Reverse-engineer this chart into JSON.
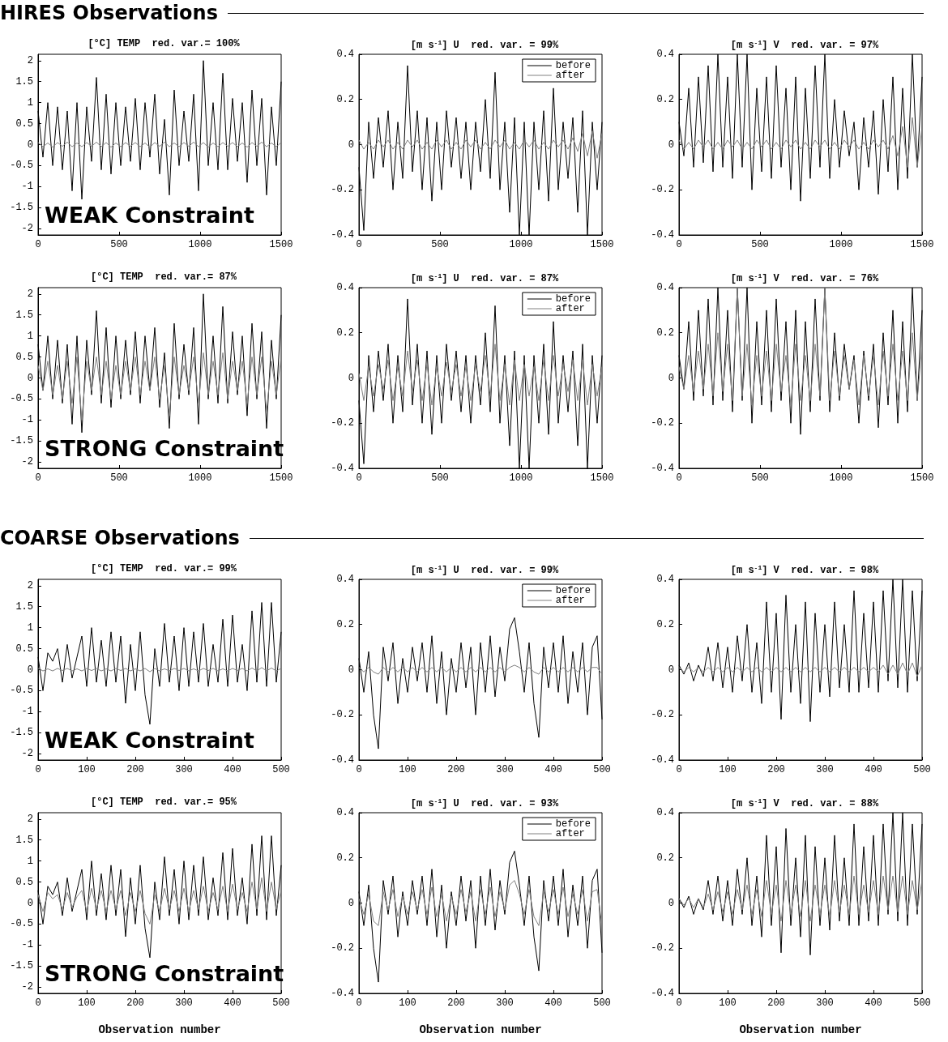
{
  "chart_data": [
    {
      "type": "line",
      "subtitle": "HIRES Observations",
      "title": "[°C] TEMP  red. var.= 100%",
      "annotations": [
        "WEAK Constraint"
      ],
      "xlim": [
        0,
        1500
      ],
      "xticks": [
        0,
        500,
        1000,
        1500
      ],
      "ylim": [
        -2.15,
        2.15
      ],
      "yticks": [
        -2,
        -1.5,
        -1,
        -0.5,
        0,
        0.5,
        1,
        1.5,
        2
      ],
      "x": [
        0,
        30,
        60,
        90,
        120,
        150,
        180,
        210,
        240,
        270,
        300,
        330,
        360,
        390,
        420,
        450,
        480,
        510,
        540,
        570,
        600,
        630,
        660,
        690,
        720,
        750,
        780,
        810,
        840,
        870,
        900,
        930,
        960,
        990,
        1020,
        1050,
        1080,
        1110,
        1140,
        1170,
        1200,
        1230,
        1260,
        1290,
        1320,
        1350,
        1380,
        1410,
        1440,
        1470,
        1500
      ],
      "series": [
        {
          "color": "#000000",
          "values": [
            0.8,
            -0.3,
            1.0,
            -0.5,
            0.9,
            -0.6,
            0.8,
            -1.1,
            1.0,
            -1.3,
            0.9,
            -0.4,
            1.6,
            -0.6,
            1.2,
            -0.7,
            1.0,
            -0.5,
            0.9,
            -0.4,
            1.1,
            -0.6,
            1.0,
            -0.3,
            1.2,
            -0.7,
            0.6,
            -1.2,
            1.3,
            -0.5,
            0.8,
            -0.4,
            1.2,
            -1.1,
            2.0,
            -0.5,
            1.0,
            -0.6,
            1.7,
            -0.6,
            1.1,
            -0.4,
            1.0,
            -0.9,
            1.3,
            -0.5,
            1.1,
            -1.2,
            0.9,
            -0.5,
            1.5
          ]
        },
        {
          "color": "#808080",
          "values": [
            0.05,
            -0.05,
            0.04,
            -0.06,
            0.05,
            -0.04,
            0.06,
            -0.05,
            0.04,
            -0.05,
            0.05,
            -0.04,
            0.06,
            -0.05,
            0.05,
            -0.06,
            0.04,
            -0.05,
            0.05,
            -0.04,
            0.05,
            -0.05,
            0.04,
            -0.06,
            0.05,
            -0.04,
            0.06,
            -0.05,
            0.04,
            -0.05,
            0.05,
            -0.04,
            0.06,
            -0.05,
            0.05,
            -0.06,
            0.04,
            -0.05,
            0.05,
            -0.04,
            0.05,
            -0.05,
            0.04,
            -0.06,
            0.05,
            -0.04,
            0.06,
            -0.05,
            0.04,
            -0.05,
            0.05
          ]
        }
      ]
    },
    {
      "type": "line",
      "title": "[m s$^{-1}$] U  red. var. = 99%",
      "legend": "top right",
      "xlim": [
        0,
        1500
      ],
      "xticks": [
        0,
        500,
        1000,
        1500
      ],
      "ylim": [
        -0.4,
        0.4
      ],
      "yticks": [
        -0.4,
        -0.2,
        0,
        0.2,
        0.4
      ],
      "x": [
        0,
        30,
        60,
        90,
        120,
        150,
        180,
        210,
        240,
        270,
        300,
        330,
        360,
        390,
        420,
        450,
        480,
        510,
        540,
        570,
        600,
        630,
        660,
        690,
        720,
        750,
        780,
        810,
        840,
        870,
        900,
        930,
        960,
        990,
        1020,
        1050,
        1080,
        1110,
        1140,
        1170,
        1200,
        1230,
        1260,
        1290,
        1320,
        1350,
        1380,
        1410,
        1440,
        1470,
        1500
      ],
      "series": [
        {
          "name": "before",
          "color": "#000000",
          "values": [
            -0.1,
            -0.38,
            0.1,
            -0.15,
            0.12,
            -0.1,
            0.15,
            -0.2,
            0.1,
            -0.15,
            0.35,
            -0.12,
            0.15,
            -0.2,
            0.12,
            -0.25,
            0.1,
            -0.2,
            0.15,
            -0.1,
            0.12,
            -0.15,
            0.1,
            -0.2,
            0.1,
            -0.12,
            0.2,
            -0.15,
            0.32,
            -0.2,
            0.1,
            -0.3,
            0.12,
            -0.4,
            0.1,
            -0.4,
            0.1,
            -0.2,
            0.15,
            -0.25,
            0.25,
            -0.2,
            0.1,
            -0.15,
            0.12,
            -0.3,
            0.15,
            -0.4,
            0.1,
            -0.2,
            0.1
          ]
        },
        {
          "name": "after",
          "color": "#808080",
          "values": [
            0.02,
            -0.02,
            0.01,
            -0.02,
            0.02,
            -0.01,
            0.02,
            -0.02,
            0.01,
            -0.02,
            0.02,
            -0.01,
            0.02,
            -0.02,
            0.01,
            -0.02,
            0.02,
            -0.01,
            0.02,
            -0.02,
            0.01,
            -0.02,
            0.02,
            -0.01,
            0.02,
            -0.02,
            0.01,
            -0.02,
            0.02,
            -0.01,
            0.02,
            -0.02,
            0.01,
            -0.02,
            0.02,
            -0.01,
            0.02,
            -0.02,
            0.01,
            -0.02,
            0.02,
            -0.01,
            0.02,
            -0.02,
            0.03,
            -0.03,
            0.05,
            -0.05,
            0.06,
            -0.06,
            0.05
          ]
        }
      ]
    },
    {
      "type": "line",
      "title": "[m s$^{-1}$] V  red. var. = 97%",
      "xlim": [
        0,
        1500
      ],
      "xticks": [
        0,
        500,
        1000,
        1500
      ],
      "ylim": [
        -0.4,
        0.4
      ],
      "yticks": [
        -0.4,
        -0.2,
        0,
        0.2,
        0.4
      ],
      "x": [
        0,
        30,
        60,
        90,
        120,
        150,
        180,
        210,
        240,
        270,
        300,
        330,
        360,
        390,
        420,
        450,
        480,
        510,
        540,
        570,
        600,
        630,
        660,
        690,
        720,
        750,
        780,
        810,
        840,
        870,
        900,
        930,
        960,
        990,
        1020,
        1050,
        1080,
        1110,
        1140,
        1170,
        1200,
        1230,
        1260,
        1290,
        1320,
        1350,
        1380,
        1410,
        1440,
        1470,
        1500
      ],
      "series": [
        {
          "color": "#000000",
          "values": [
            0.1,
            -0.05,
            0.25,
            -0.1,
            0.3,
            -0.08,
            0.35,
            -0.12,
            0.4,
            -0.1,
            0.3,
            -0.15,
            0.4,
            -0.1,
            0.4,
            -0.2,
            0.25,
            -0.12,
            0.3,
            -0.15,
            0.35,
            -0.1,
            0.25,
            -0.2,
            0.3,
            -0.25,
            0.25,
            -0.15,
            0.35,
            -0.1,
            0.4,
            -0.15,
            0.2,
            -0.1,
            0.15,
            -0.05,
            0.1,
            -0.2,
            0.12,
            -0.1,
            0.15,
            -0.22,
            0.2,
            -0.12,
            0.3,
            -0.2,
            0.25,
            -0.15,
            0.4,
            -0.1,
            0.3
          ]
        },
        {
          "color": "#808080",
          "values": [
            0.02,
            -0.02,
            0.01,
            -0.02,
            0.02,
            -0.01,
            0.02,
            -0.02,
            0.01,
            -0.02,
            0.02,
            -0.01,
            0.02,
            -0.02,
            0.01,
            -0.02,
            0.02,
            -0.01,
            0.02,
            -0.02,
            0.01,
            -0.02,
            0.02,
            -0.01,
            0.02,
            -0.02,
            0.01,
            -0.02,
            0.02,
            -0.01,
            0.02,
            -0.02,
            0.01,
            -0.02,
            0.02,
            -0.01,
            0.02,
            -0.02,
            0.01,
            -0.02,
            0.02,
            -0.01,
            0.02,
            -0.02,
            0.04,
            -0.05,
            0.08,
            -0.1,
            0.12,
            -0.1,
            0.08
          ]
        }
      ]
    },
    {
      "type": "line",
      "title": "[°C] TEMP  red. var.= 87%",
      "annotations": [
        "STRONG Constraint"
      ],
      "xlim": [
        0,
        1500
      ],
      "xticks": [
        0,
        500,
        1000,
        1500
      ],
      "ylim": [
        -2.15,
        2.15
      ],
      "yticks": [
        -2,
        -1.5,
        -1,
        -0.5,
        0,
        0.5,
        1,
        1.5,
        2
      ],
      "x": [
        0,
        30,
        60,
        90,
        120,
        150,
        180,
        210,
        240,
        270,
        300,
        330,
        360,
        390,
        420,
        450,
        480,
        510,
        540,
        570,
        600,
        630,
        660,
        690,
        720,
        750,
        780,
        810,
        840,
        870,
        900,
        930,
        960,
        990,
        1020,
        1050,
        1080,
        1110,
        1140,
        1170,
        1200,
        1230,
        1260,
        1290,
        1320,
        1350,
        1380,
        1410,
        1440,
        1470,
        1500
      ],
      "series": [
        {
          "color": "#000000",
          "values": [
            0.8,
            -0.3,
            1.0,
            -0.5,
            0.9,
            -0.6,
            0.8,
            -1.1,
            1.0,
            -1.3,
            0.9,
            -0.4,
            1.6,
            -0.6,
            1.2,
            -0.7,
            1.0,
            -0.5,
            0.9,
            -0.4,
            1.1,
            -0.6,
            1.0,
            -0.3,
            1.2,
            -0.7,
            0.6,
            -1.2,
            1.3,
            -0.5,
            0.8,
            -0.4,
            1.2,
            -1.1,
            2.0,
            -0.5,
            1.0,
            -0.6,
            1.7,
            -0.6,
            1.1,
            -0.4,
            1.0,
            -0.9,
            1.3,
            -0.5,
            1.1,
            -1.2,
            0.9,
            -0.5,
            1.5
          ]
        },
        {
          "color": "#808080",
          "values": [
            0.3,
            -0.3,
            0.4,
            -0.4,
            0.3,
            -0.5,
            0.4,
            -0.6,
            0.5,
            -1.0,
            0.4,
            -0.3,
            0.5,
            -0.4,
            0.4,
            -0.5,
            0.3,
            -0.4,
            0.4,
            -0.3,
            0.5,
            -0.4,
            0.4,
            -0.3,
            0.5,
            -0.5,
            0.3,
            -0.9,
            0.5,
            -0.4,
            0.3,
            -0.3,
            0.5,
            -0.6,
            0.6,
            -0.4,
            0.4,
            -0.4,
            0.6,
            -0.5,
            0.4,
            -0.3,
            0.4,
            -0.6,
            0.5,
            -0.4,
            0.5,
            -0.8,
            0.4,
            -0.4,
            0.5
          ]
        }
      ]
    },
    {
      "type": "line",
      "title": "[m s$^{-1}$] U  red. var. = 87%",
      "legend": "top right",
      "xlim": [
        0,
        1500
      ],
      "xticks": [
        0,
        500,
        1000,
        1500
      ],
      "ylim": [
        -0.4,
        0.4
      ],
      "yticks": [
        -0.4,
        -0.2,
        0,
        0.2,
        0.4
      ],
      "x": [
        0,
        30,
        60,
        90,
        120,
        150,
        180,
        210,
        240,
        270,
        300,
        330,
        360,
        390,
        420,
        450,
        480,
        510,
        540,
        570,
        600,
        630,
        660,
        690,
        720,
        750,
        780,
        810,
        840,
        870,
        900,
        930,
        960,
        990,
        1020,
        1050,
        1080,
        1110,
        1140,
        1170,
        1200,
        1230,
        1260,
        1290,
        1320,
        1350,
        1380,
        1410,
        1440,
        1470,
        1500
      ],
      "series": [
        {
          "name": "before",
          "color": "#000000",
          "values": [
            -0.1,
            -0.38,
            0.1,
            -0.15,
            0.12,
            -0.1,
            0.15,
            -0.2,
            0.1,
            -0.15,
            0.35,
            -0.12,
            0.15,
            -0.2,
            0.12,
            -0.25,
            0.1,
            -0.2,
            0.15,
            -0.1,
            0.12,
            -0.15,
            0.1,
            -0.2,
            0.1,
            -0.12,
            0.2,
            -0.15,
            0.32,
            -0.2,
            0.1,
            -0.3,
            0.12,
            -0.4,
            0.1,
            -0.4,
            0.1,
            -0.2,
            0.15,
            -0.25,
            0.25,
            -0.2,
            0.1,
            -0.15,
            0.12,
            -0.3,
            0.15,
            -0.4,
            0.1,
            -0.2,
            0.1
          ]
        },
        {
          "name": "after",
          "color": "#808080",
          "values": [
            0.02,
            -0.1,
            0.05,
            -0.08,
            0.06,
            -0.05,
            0.08,
            -0.1,
            0.05,
            -0.08,
            0.12,
            -0.06,
            0.08,
            -0.1,
            0.06,
            -0.12,
            0.05,
            -0.08,
            0.07,
            -0.06,
            0.06,
            -0.08,
            0.05,
            -0.1,
            0.06,
            -0.06,
            0.1,
            -0.08,
            0.15,
            -0.1,
            0.06,
            -0.12,
            0.08,
            -0.1,
            0.06,
            -0.08,
            0.05,
            -0.1,
            0.08,
            -0.1,
            0.1,
            -0.08,
            0.06,
            -0.06,
            0.08,
            -0.1,
            0.08,
            -0.12,
            0.06,
            -0.08,
            0.05
          ]
        }
      ]
    },
    {
      "type": "line",
      "title": "[m s$^{-1}$] V  red. var. = 76%",
      "xlim": [
        0,
        1500
      ],
      "xticks": [
        0,
        500,
        1000,
        1500
      ],
      "ylim": [
        -0.4,
        0.4
      ],
      "yticks": [
        -0.4,
        -0.2,
        0,
        0.2,
        0.4
      ],
      "x": [
        0,
        30,
        60,
        90,
        120,
        150,
        180,
        210,
        240,
        270,
        300,
        330,
        360,
        390,
        420,
        450,
        480,
        510,
        540,
        570,
        600,
        630,
        660,
        690,
        720,
        750,
        780,
        810,
        840,
        870,
        900,
        930,
        960,
        990,
        1020,
        1050,
        1080,
        1110,
        1140,
        1170,
        1200,
        1230,
        1260,
        1290,
        1320,
        1350,
        1380,
        1410,
        1440,
        1470,
        1500
      ],
      "series": [
        {
          "color": "#000000",
          "values": [
            0.1,
            -0.05,
            0.25,
            -0.1,
            0.3,
            -0.08,
            0.35,
            -0.12,
            0.4,
            -0.1,
            0.3,
            -0.15,
            0.4,
            -0.1,
            0.4,
            -0.2,
            0.25,
            -0.12,
            0.3,
            -0.15,
            0.35,
            -0.1,
            0.25,
            -0.2,
            0.3,
            -0.25,
            0.25,
            -0.15,
            0.35,
            -0.1,
            0.4,
            -0.15,
            0.2,
            -0.1,
            0.15,
            -0.05,
            0.1,
            -0.2,
            0.12,
            -0.1,
            0.15,
            -0.22,
            0.2,
            -0.12,
            0.3,
            -0.2,
            0.25,
            -0.15,
            0.4,
            -0.1,
            0.3
          ]
        },
        {
          "color": "#808080",
          "values": [
            0.05,
            -0.05,
            0.1,
            -0.06,
            0.12,
            -0.05,
            0.15,
            -0.08,
            0.2,
            -0.06,
            0.15,
            -0.1,
            0.4,
            -0.08,
            0.15,
            -0.12,
            0.1,
            -0.08,
            0.12,
            -0.1,
            0.15,
            -0.06,
            0.1,
            -0.12,
            0.15,
            -0.1,
            0.1,
            -0.1,
            0.15,
            -0.08,
            0.4,
            -0.1,
            0.12,
            -0.08,
            0.1,
            -0.05,
            0.08,
            -0.12,
            0.1,
            -0.08,
            0.1,
            -0.12,
            0.12,
            -0.08,
            0.15,
            -0.1,
            0.12,
            -0.1,
            0.2,
            -0.1,
            0.15
          ]
        }
      ]
    },
    {
      "type": "line",
      "subtitle": "COARSE Observations",
      "title": "[°C] TEMP  red. var.= 99%",
      "annotations": [
        "WEAK Constraint"
      ],
      "xlim": [
        0,
        500
      ],
      "xticks": [
        0,
        100,
        200,
        300,
        400,
        500
      ],
      "ylim": [
        -2.15,
        2.15
      ],
      "yticks": [
        -2,
        -1.5,
        -1,
        -0.5,
        0,
        0.5,
        1,
        1.5,
        2
      ],
      "x": [
        0,
        10,
        20,
        30,
        40,
        50,
        60,
        70,
        80,
        90,
        100,
        110,
        120,
        130,
        140,
        150,
        160,
        170,
        180,
        190,
        200,
        210,
        220,
        230,
        240,
        250,
        260,
        270,
        280,
        290,
        300,
        310,
        320,
        330,
        340,
        350,
        360,
        370,
        380,
        390,
        400,
        410,
        420,
        430,
        440,
        450,
        460,
        470,
        480,
        490,
        500
      ],
      "series": [
        {
          "color": "#000000",
          "values": [
            0.3,
            -0.5,
            0.4,
            0.2,
            0.5,
            -0.3,
            0.6,
            -0.2,
            0.3,
            0.8,
            -0.4,
            1.0,
            -0.3,
            0.7,
            -0.4,
            0.9,
            -0.3,
            0.8,
            -0.8,
            0.6,
            -0.5,
            0.9,
            -0.6,
            -1.3,
            0.5,
            -0.4,
            1.1,
            -0.3,
            0.8,
            -0.5,
            1.0,
            -0.4,
            0.9,
            -0.3,
            1.1,
            -0.4,
            0.6,
            -0.3,
            1.2,
            -0.4,
            1.3,
            -0.3,
            0.6,
            -0.5,
            1.4,
            -0.3,
            1.6,
            -0.4,
            1.6,
            -0.3,
            0.9
          ]
        },
        {
          "color": "#808080",
          "values": [
            0.03,
            -0.03,
            0.02,
            -0.03,
            0.03,
            -0.02,
            0.03,
            -0.03,
            0.02,
            -0.03,
            0.03,
            -0.02,
            0.03,
            -0.03,
            0.02,
            -0.03,
            0.03,
            -0.02,
            0.03,
            -0.03,
            0.02,
            -0.03,
            0.03,
            -0.05,
            0.03,
            -0.03,
            0.02,
            -0.03,
            0.03,
            -0.02,
            0.03,
            -0.03,
            0.02,
            -0.03,
            0.03,
            -0.02,
            0.03,
            -0.03,
            0.02,
            -0.03,
            0.03,
            -0.02,
            0.03,
            -0.03,
            0.04,
            -0.03,
            0.05,
            -0.03,
            0.04,
            -0.03,
            0.03
          ]
        }
      ]
    },
    {
      "type": "line",
      "title": "[m s$^{-1}$] U  red. var. = 99%",
      "legend": "top right",
      "xlim": [
        0,
        500
      ],
      "xticks": [
        0,
        100,
        200,
        300,
        400,
        500
      ],
      "ylim": [
        -0.4,
        0.4
      ],
      "yticks": [
        -0.4,
        -0.2,
        0,
        0.2,
        0.4
      ],
      "x": [
        0,
        10,
        20,
        30,
        40,
        50,
        60,
        70,
        80,
        90,
        100,
        110,
        120,
        130,
        140,
        150,
        160,
        170,
        180,
        190,
        200,
        210,
        220,
        230,
        240,
        250,
        260,
        270,
        280,
        290,
        300,
        310,
        320,
        330,
        340,
        350,
        360,
        370,
        380,
        390,
        400,
        410,
        420,
        430,
        440,
        450,
        460,
        470,
        480,
        490,
        500
      ],
      "series": [
        {
          "name": "before",
          "color": "#000000",
          "values": [
            0.05,
            -0.1,
            0.08,
            -0.2,
            -0.35,
            0.1,
            -0.05,
            0.12,
            -0.15,
            0.05,
            -0.1,
            0.1,
            -0.05,
            0.12,
            -0.1,
            0.15,
            -0.15,
            0.08,
            -0.2,
            0.05,
            -0.1,
            0.12,
            -0.08,
            0.1,
            -0.2,
            0.12,
            -0.1,
            0.15,
            -0.12,
            0.1,
            -0.05,
            0.18,
            0.23,
            0.08,
            -0.1,
            0.12,
            -0.15,
            -0.3,
            0.1,
            -0.08,
            0.12,
            -0.1,
            0.15,
            -0.15,
            0.08,
            -0.1,
            0.12,
            -0.2,
            0.1,
            0.15,
            -0.22
          ]
        },
        {
          "name": "after",
          "color": "#808080",
          "values": [
            0.01,
            -0.01,
            0.01,
            -0.01,
            -0.02,
            0.01,
            -0.01,
            0.01,
            -0.01,
            0.01,
            -0.01,
            0.01,
            -0.01,
            0.01,
            -0.01,
            0.01,
            -0.01,
            0.01,
            -0.01,
            0.01,
            -0.01,
            0.01,
            -0.01,
            0.01,
            -0.01,
            0.01,
            -0.01,
            0.01,
            -0.01,
            0.01,
            -0.01,
            0.01,
            0.02,
            0.01,
            -0.01,
            0.01,
            -0.01,
            -0.02,
            0.01,
            -0.01,
            0.01,
            -0.01,
            0.01,
            -0.01,
            0.01,
            -0.01,
            0.01,
            -0.01,
            0.01,
            0.01,
            -0.02
          ]
        }
      ]
    },
    {
      "type": "line",
      "title": "[m s$^{-1}$] V  red. var. = 98%",
      "xlim": [
        0,
        500
      ],
      "xticks": [
        0,
        100,
        200,
        300,
        400,
        500
      ],
      "ylim": [
        -0.4,
        0.4
      ],
      "yticks": [
        -0.4,
        -0.2,
        0,
        0.2,
        0.4
      ],
      "x": [
        0,
        10,
        20,
        30,
        40,
        50,
        60,
        70,
        80,
        90,
        100,
        110,
        120,
        130,
        140,
        150,
        160,
        170,
        180,
        190,
        200,
        210,
        220,
        230,
        240,
        250,
        260,
        270,
        280,
        290,
        300,
        310,
        320,
        330,
        340,
        350,
        360,
        370,
        380,
        390,
        400,
        410,
        420,
        430,
        440,
        450,
        460,
        470,
        480,
        490,
        500
      ],
      "series": [
        {
          "color": "#000000",
          "values": [
            0.02,
            -0.02,
            0.03,
            -0.05,
            0.02,
            -0.03,
            0.1,
            -0.05,
            0.12,
            -0.08,
            0.1,
            -0.1,
            0.15,
            -0.05,
            0.2,
            -0.1,
            0.12,
            -0.15,
            0.3,
            -0.1,
            0.25,
            -0.22,
            0.33,
            -0.1,
            0.2,
            -0.15,
            0.3,
            -0.23,
            0.25,
            -0.1,
            0.2,
            -0.12,
            0.3,
            -0.08,
            0.2,
            -0.1,
            0.35,
            -0.1,
            0.25,
            -0.08,
            0.3,
            -0.1,
            0.35,
            -0.05,
            0.4,
            -0.08,
            0.4,
            -0.1,
            0.35,
            -0.05,
            0.35
          ]
        },
        {
          "color": "#808080",
          "values": [
            0.01,
            -0.01,
            0.01,
            -0.01,
            0.01,
            -0.01,
            0.01,
            -0.01,
            0.01,
            -0.01,
            0.01,
            -0.01,
            0.01,
            -0.01,
            0.01,
            -0.01,
            0.01,
            -0.01,
            0.01,
            -0.01,
            0.01,
            -0.01,
            0.01,
            -0.01,
            0.01,
            -0.01,
            0.01,
            -0.01,
            0.01,
            -0.01,
            0.01,
            -0.01,
            0.01,
            -0.01,
            0.01,
            -0.01,
            0.01,
            -0.01,
            0.01,
            -0.01,
            0.01,
            -0.01,
            0.02,
            -0.02,
            0.02,
            -0.02,
            0.03,
            -0.02,
            0.03,
            -0.03,
            0.02
          ]
        }
      ]
    },
    {
      "type": "line",
      "title": "[°C] TEMP  red. var.= 95%",
      "annotations": [
        "STRONG Constraint"
      ],
      "xlabel": "Observation number",
      "xlim": [
        0,
        500
      ],
      "xticks": [
        0,
        100,
        200,
        300,
        400,
        500
      ],
      "ylim": [
        -2.15,
        2.15
      ],
      "yticks": [
        -2,
        -1.5,
        -1,
        -0.5,
        0,
        0.5,
        1,
        1.5,
        2
      ],
      "x": [
        0,
        10,
        20,
        30,
        40,
        50,
        60,
        70,
        80,
        90,
        100,
        110,
        120,
        130,
        140,
        150,
        160,
        170,
        180,
        190,
        200,
        210,
        220,
        230,
        240,
        250,
        260,
        270,
        280,
        290,
        300,
        310,
        320,
        330,
        340,
        350,
        360,
        370,
        380,
        390,
        400,
        410,
        420,
        430,
        440,
        450,
        460,
        470,
        480,
        490,
        500
      ],
      "series": [
        {
          "color": "#000000",
          "values": [
            0.3,
            -0.5,
            0.4,
            0.2,
            0.5,
            -0.3,
            0.6,
            -0.2,
            0.3,
            0.8,
            -0.4,
            1.0,
            -0.3,
            0.7,
            -0.4,
            0.9,
            -0.3,
            0.8,
            -0.8,
            0.6,
            -0.5,
            0.9,
            -0.6,
            -1.3,
            0.5,
            -0.4,
            1.1,
            -0.3,
            0.8,
            -0.5,
            1.0,
            -0.4,
            0.9,
            -0.3,
            1.1,
            -0.4,
            0.6,
            -0.3,
            1.2,
            -0.4,
            1.3,
            -0.3,
            0.6,
            -0.5,
            1.4,
            -0.3,
            1.6,
            -0.4,
            1.6,
            -0.3,
            0.9
          ]
        },
        {
          "color": "#808080",
          "values": [
            0.2,
            -0.2,
            0.25,
            0.1,
            0.2,
            -0.15,
            0.25,
            -0.1,
            0.15,
            0.3,
            -0.2,
            0.35,
            -0.15,
            0.3,
            -0.2,
            0.3,
            -0.15,
            0.3,
            -0.3,
            0.25,
            -0.2,
            0.3,
            -0.25,
            -0.5,
            0.2,
            -0.2,
            0.35,
            -0.15,
            0.3,
            -0.2,
            0.35,
            -0.2,
            0.3,
            -0.15,
            0.4,
            -0.2,
            0.25,
            -0.15,
            0.4,
            -0.2,
            0.45,
            -0.15,
            0.25,
            -0.2,
            0.5,
            -0.15,
            0.6,
            -0.2,
            0.5,
            -0.15,
            0.3
          ]
        }
      ]
    },
    {
      "type": "line",
      "title": "[m s$^{-1}$] U  red. var. = 93%",
      "legend": "top right",
      "xlabel": "Observation number",
      "xlim": [
        0,
        500
      ],
      "xticks": [
        0,
        100,
        200,
        300,
        400,
        500
      ],
      "ylim": [
        -0.4,
        0.4
      ],
      "yticks": [
        -0.4,
        -0.2,
        0,
        0.2,
        0.4
      ],
      "x": [
        0,
        10,
        20,
        30,
        40,
        50,
        60,
        70,
        80,
        90,
        100,
        110,
        120,
        130,
        140,
        150,
        160,
        170,
        180,
        190,
        200,
        210,
        220,
        230,
        240,
        250,
        260,
        270,
        280,
        290,
        300,
        310,
        320,
        330,
        340,
        350,
        360,
        370,
        380,
        390,
        400,
        410,
        420,
        430,
        440,
        450,
        460,
        470,
        480,
        490,
        500
      ],
      "series": [
        {
          "name": "before",
          "color": "#000000",
          "values": [
            0.05,
            -0.1,
            0.08,
            -0.2,
            -0.35,
            0.1,
            -0.05,
            0.12,
            -0.15,
            0.05,
            -0.1,
            0.1,
            -0.05,
            0.12,
            -0.1,
            0.15,
            -0.15,
            0.08,
            -0.2,
            0.05,
            -0.1,
            0.12,
            -0.08,
            0.1,
            -0.2,
            0.12,
            -0.1,
            0.15,
            -0.12,
            0.1,
            -0.05,
            0.18,
            0.23,
            0.08,
            -0.1,
            0.12,
            -0.15,
            -0.3,
            0.1,
            -0.08,
            0.12,
            -0.1,
            0.15,
            -0.15,
            0.08,
            -0.1,
            0.12,
            -0.2,
            0.1,
            0.15,
            -0.22
          ]
        },
        {
          "name": "after",
          "color": "#808080",
          "values": [
            0.02,
            -0.05,
            0.04,
            -0.08,
            -0.1,
            0.05,
            -0.03,
            0.06,
            -0.06,
            0.03,
            -0.05,
            0.05,
            -0.03,
            0.06,
            -0.05,
            0.07,
            -0.06,
            0.04,
            -0.08,
            0.03,
            -0.05,
            0.06,
            -0.04,
            0.05,
            -0.08,
            0.06,
            -0.05,
            0.07,
            -0.06,
            0.05,
            -0.03,
            0.08,
            0.1,
            0.04,
            -0.05,
            0.06,
            -0.06,
            -0.1,
            0.05,
            -0.04,
            0.06,
            -0.05,
            0.07,
            -0.06,
            0.04,
            -0.05,
            0.06,
            -0.08,
            0.05,
            0.06,
            -0.1
          ]
        }
      ]
    },
    {
      "type": "line",
      "title": "[m s$^{-1}$] V  red. var. = 88%",
      "xlabel": "Observation number",
      "xlim": [
        0,
        500
      ],
      "xticks": [
        0,
        100,
        200,
        300,
        400,
        500
      ],
      "ylim": [
        -0.4,
        0.4
      ],
      "yticks": [
        -0.4,
        -0.2,
        0,
        0.2,
        0.4
      ],
      "x": [
        0,
        10,
        20,
        30,
        40,
        50,
        60,
        70,
        80,
        90,
        100,
        110,
        120,
        130,
        140,
        150,
        160,
        170,
        180,
        190,
        200,
        210,
        220,
        230,
        240,
        250,
        260,
        270,
        280,
        290,
        300,
        310,
        320,
        330,
        340,
        350,
        360,
        370,
        380,
        390,
        400,
        410,
        420,
        430,
        440,
        450,
        460,
        470,
        480,
        490,
        500
      ],
      "series": [
        {
          "color": "#000000",
          "values": [
            0.02,
            -0.02,
            0.03,
            -0.05,
            0.02,
            -0.03,
            0.1,
            -0.05,
            0.12,
            -0.08,
            0.1,
            -0.1,
            0.15,
            -0.05,
            0.2,
            -0.1,
            0.12,
            -0.15,
            0.3,
            -0.1,
            0.25,
            -0.22,
            0.33,
            -0.1,
            0.2,
            -0.15,
            0.3,
            -0.23,
            0.25,
            -0.1,
            0.2,
            -0.12,
            0.3,
            -0.08,
            0.2,
            -0.1,
            0.35,
            -0.1,
            0.25,
            -0.08,
            0.3,
            -0.1,
            0.35,
            -0.05,
            0.4,
            -0.08,
            0.4,
            -0.1,
            0.35,
            -0.05,
            0.35
          ]
        },
        {
          "color": "#808080",
          "values": [
            0.02,
            -0.01,
            0.02,
            -0.02,
            0.02,
            -0.02,
            0.04,
            -0.03,
            0.05,
            -0.04,
            0.05,
            -0.05,
            0.06,
            -0.03,
            0.08,
            -0.05,
            0.06,
            -0.06,
            0.1,
            -0.05,
            0.08,
            -0.08,
            0.1,
            -0.05,
            0.08,
            -0.06,
            0.1,
            -0.08,
            0.08,
            -0.05,
            0.08,
            -0.06,
            0.1,
            -0.04,
            0.08,
            -0.05,
            0.12,
            -0.05,
            0.08,
            -0.04,
            0.1,
            -0.05,
            0.12,
            -0.03,
            0.12,
            -0.04,
            0.12,
            -0.05,
            0.1,
            -0.03,
            0.1
          ]
        }
      ]
    }
  ]
}
